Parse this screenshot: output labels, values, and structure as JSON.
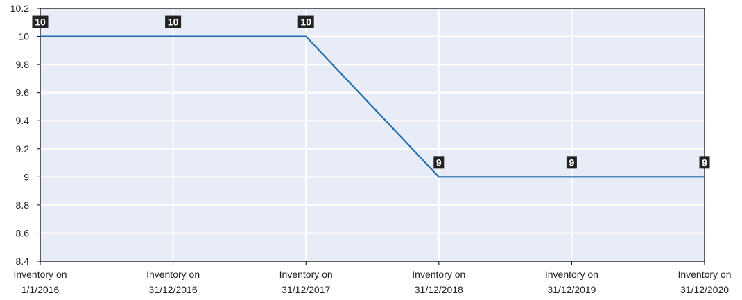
{
  "chart_data": {
    "type": "line",
    "categories": [
      [
        "Inventory on",
        "1/1/2016"
      ],
      [
        "Inventory on",
        "31/12/2016"
      ],
      [
        "Inventory on",
        "31/12/2017"
      ],
      [
        "Inventory on",
        "31/12/2018"
      ],
      [
        "Inventory on",
        "31/12/2019"
      ],
      [
        "Inventory on",
        "31/12/2020"
      ]
    ],
    "values": [
      10,
      10,
      10,
      9,
      9,
      9
    ],
    "data_labels": [
      "10",
      "10",
      "10",
      "9",
      "9",
      "9"
    ],
    "ylim": [
      8.4,
      10.2
    ],
    "yticks": [
      8.4,
      8.6,
      8.8,
      9,
      9.2,
      9.4,
      9.6,
      9.8,
      10,
      10.2
    ],
    "ytick_labels": [
      "8.4",
      "8.6",
      "8.8",
      "9",
      "9.2",
      "9.4",
      "9.6",
      "9.8",
      "10",
      "10.2"
    ],
    "grid": true,
    "legend": "none",
    "colors": {
      "line": "#1a6aac",
      "plot_background": "#e8ecf6",
      "grid": "#ffffff",
      "axis": "#000000",
      "label_background": "#222222",
      "label_text": "#ffffff"
    }
  }
}
